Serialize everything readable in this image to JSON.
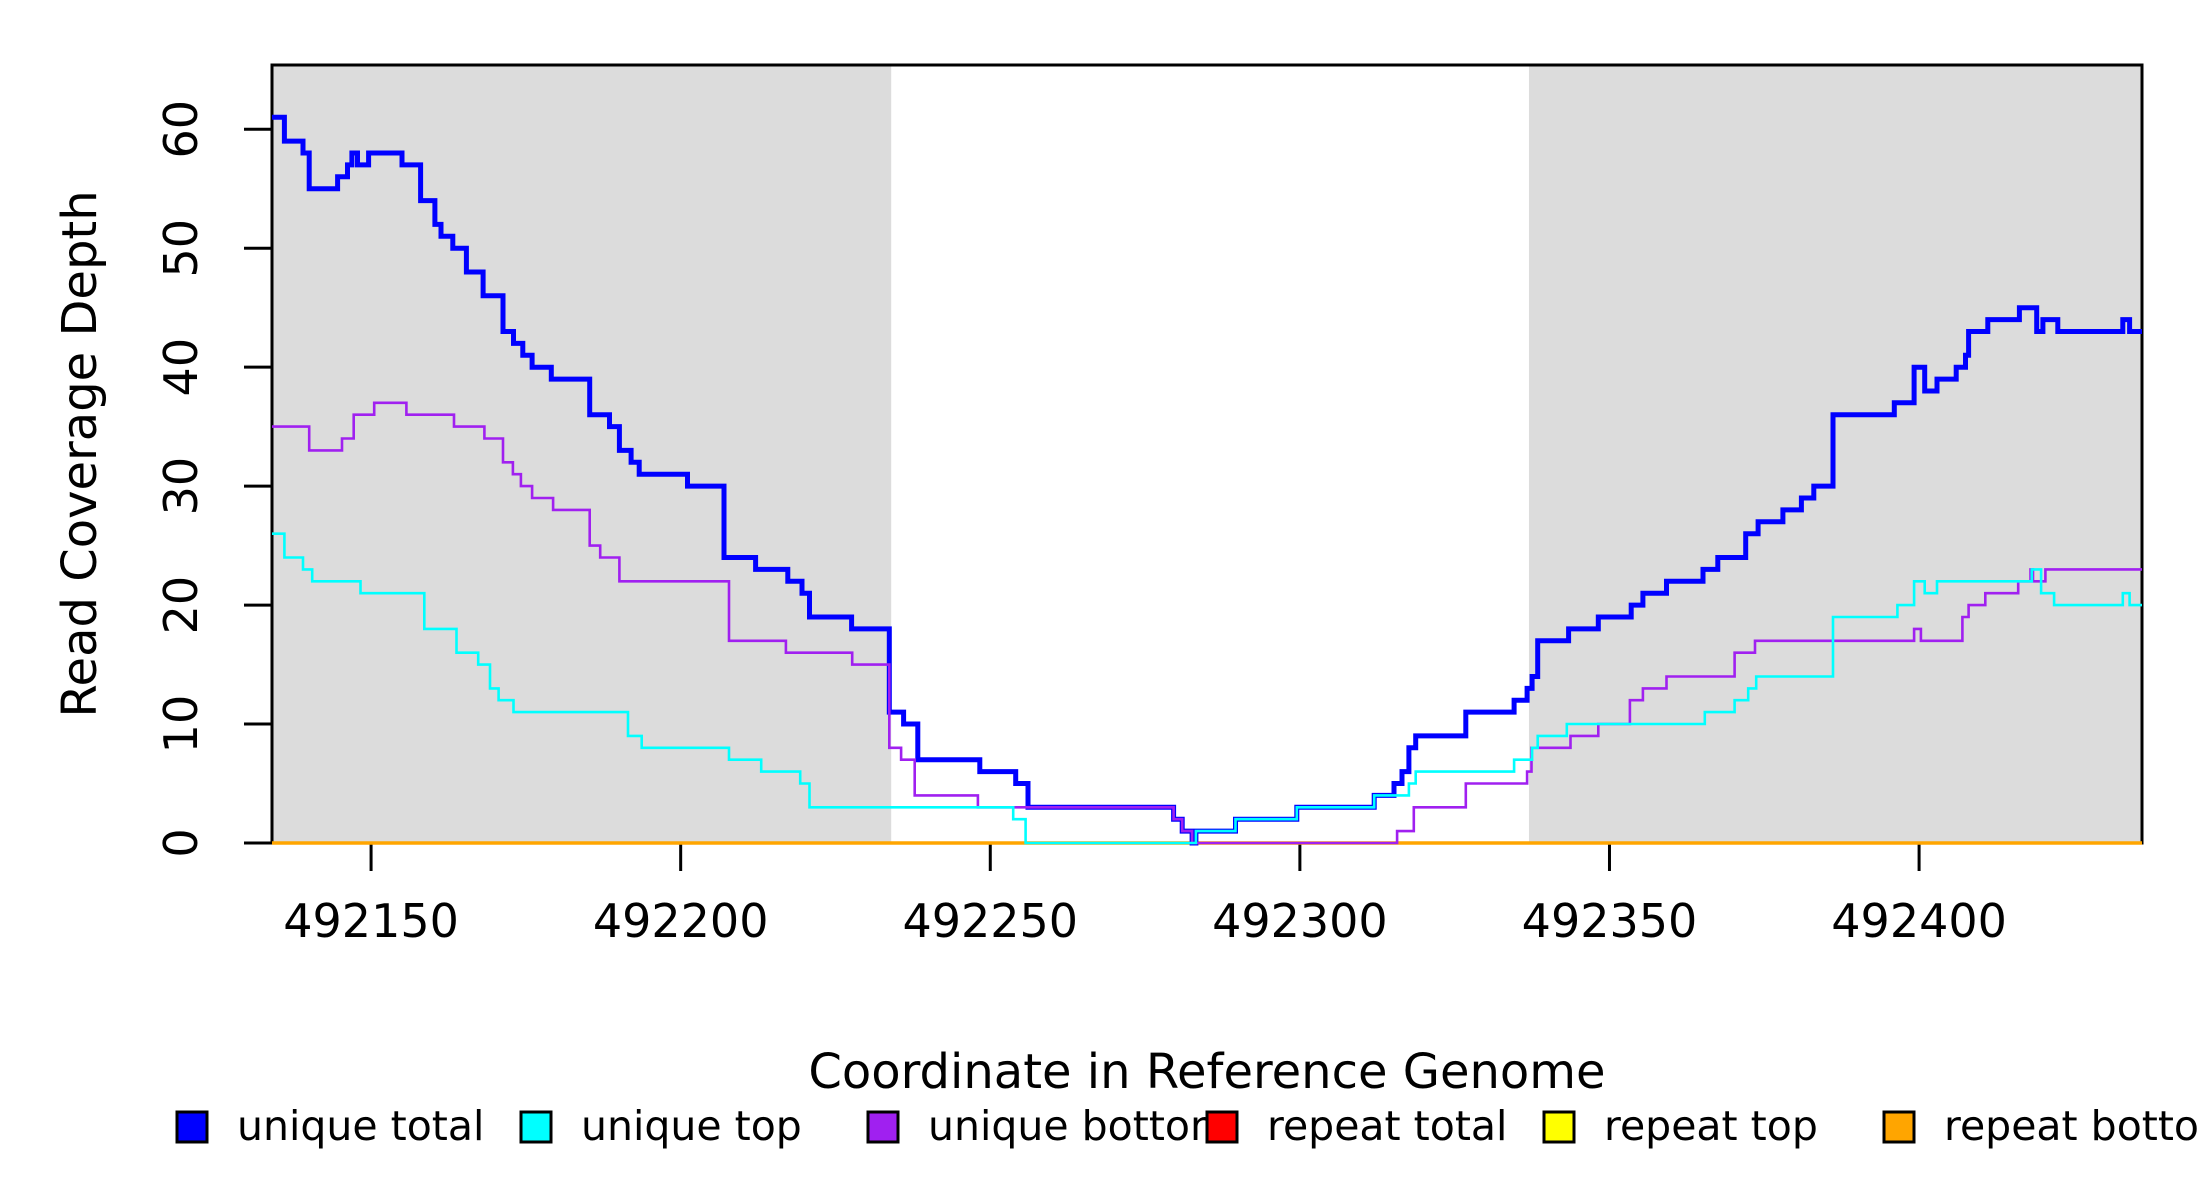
{
  "chart_data": {
    "type": "line",
    "title": "",
    "xlabel": "Coordinate in Reference Genome",
    "ylabel": "Read Coverage Depth",
    "xlim": [
      492134,
      492436
    ],
    "ylim": [
      0,
      65.4
    ],
    "x_end": 492436,
    "x_ticks": [
      "492150",
      "492200",
      "492250",
      "492300",
      "492350",
      "492400"
    ],
    "x_tick_values": [
      492150,
      492200,
      492250,
      492300,
      492350,
      492400
    ],
    "y_ticks": [
      "0",
      "10",
      "20",
      "30",
      "40",
      "50",
      "60"
    ],
    "y_tick_values": [
      0,
      10,
      20,
      30,
      40,
      50,
      60
    ],
    "grid": false,
    "shade_color": "#DCDCDC",
    "shaded_regions": [
      [
        492134,
        492234
      ],
      [
        492337,
        492436
      ]
    ],
    "legend_position": "bottom",
    "legend": [
      {
        "label": "unique total",
        "color": "#0000FF"
      },
      {
        "label": "unique top",
        "color": "#00FFFF"
      },
      {
        "label": "unique bottom",
        "color": "#A020F0"
      },
      {
        "label": "repeat total",
        "color": "#FF0000"
      },
      {
        "label": "repeat top",
        "color": "#FFFF00"
      },
      {
        "label": "repeat bottom",
        "color": "#FFA500"
      }
    ],
    "series": [
      {
        "name": "repeat total",
        "color": "#FF0000",
        "width": 2.6,
        "steps": [
          [
            492134,
            0
          ]
        ]
      },
      {
        "name": "repeat top",
        "color": "#FFFF00",
        "width": 2.6,
        "steps": [
          [
            492134,
            0
          ]
        ]
      },
      {
        "name": "repeat bottom",
        "color": "#FFA500",
        "width": 3.6,
        "steps": [
          [
            492134,
            0
          ]
        ]
      },
      {
        "name": "unique total",
        "color": "#0000FF",
        "width": 5,
        "steps": [
          [
            492134,
            61
          ],
          [
            492136,
            59
          ],
          [
            492139,
            58
          ],
          [
            492140,
            55
          ],
          [
            492144.6,
            56
          ],
          [
            492146.2,
            57
          ],
          [
            492146.9,
            58
          ],
          [
            492147.8,
            57
          ],
          [
            492149.6,
            58
          ],
          [
            492155,
            57
          ],
          [
            492158,
            54
          ],
          [
            492160.3,
            52
          ],
          [
            492161.3,
            51
          ],
          [
            492163.2,
            50
          ],
          [
            492165.4,
            48
          ],
          [
            492168.1,
            46
          ],
          [
            492171.3,
            43
          ],
          [
            492173,
            42
          ],
          [
            492174.5,
            41
          ],
          [
            492176,
            40
          ],
          [
            492179.1,
            39
          ],
          [
            492185.3,
            36
          ],
          [
            492188.5,
            35
          ],
          [
            492190.1,
            33
          ],
          [
            492192,
            32
          ],
          [
            492193.3,
            31
          ],
          [
            492201.1,
            30
          ],
          [
            492207,
            24
          ],
          [
            492212.1,
            23
          ],
          [
            492217.3,
            22
          ],
          [
            492219.6,
            21
          ],
          [
            492220.8,
            19
          ],
          [
            492227.6,
            18
          ],
          [
            492233.7,
            11
          ],
          [
            492236,
            10
          ],
          [
            492238.3,
            7
          ],
          [
            492248.3,
            6
          ],
          [
            492254.1,
            5
          ],
          [
            492256.1,
            3
          ],
          [
            492279.6,
            2
          ],
          [
            492281,
            1
          ],
          [
            492282.6,
            0
          ],
          [
            492283.2,
            1
          ],
          [
            492289.6,
            2
          ],
          [
            492299.5,
            3
          ],
          [
            492312,
            4
          ],
          [
            492315.2,
            5
          ],
          [
            492316.5,
            6
          ],
          [
            492317.6,
            8
          ],
          [
            492318.7,
            9
          ],
          [
            492326.8,
            11
          ],
          [
            492334.6,
            12
          ],
          [
            492336.7,
            13
          ],
          [
            492337.5,
            14
          ],
          [
            492338.4,
            17
          ],
          [
            492343.4,
            18
          ],
          [
            492348.2,
            19
          ],
          [
            492353.5,
            20
          ],
          [
            492355.4,
            21
          ],
          [
            492359.2,
            22
          ],
          [
            492365.1,
            23
          ],
          [
            492367.5,
            24
          ],
          [
            492372,
            26
          ],
          [
            492374,
            27
          ],
          [
            492378,
            28
          ],
          [
            492381,
            29
          ],
          [
            492383,
            30
          ],
          [
            492386.1,
            36
          ],
          [
            492396,
            37
          ],
          [
            492399.2,
            40
          ],
          [
            492400.9,
            38
          ],
          [
            492402.9,
            39
          ],
          [
            492406,
            40
          ],
          [
            492407.5,
            41
          ],
          [
            492408,
            43
          ],
          [
            492411.1,
            44
          ],
          [
            492416.2,
            45
          ],
          [
            492419,
            43
          ],
          [
            492420,
            44
          ],
          [
            492422.4,
            43
          ],
          [
            492432.9,
            44
          ],
          [
            492434,
            43
          ]
        ]
      },
      {
        "name": "unique bottom",
        "color": "#A020F0",
        "width": 2.6,
        "steps": [
          [
            492134,
            35
          ],
          [
            492140,
            33
          ],
          [
            492145.3,
            34
          ],
          [
            492147.2,
            36
          ],
          [
            492150.5,
            37
          ],
          [
            492155.7,
            36
          ],
          [
            492163.4,
            35
          ],
          [
            492168.3,
            34
          ],
          [
            492171.3,
            32
          ],
          [
            492172.9,
            31
          ],
          [
            492174.2,
            30
          ],
          [
            492176,
            29
          ],
          [
            492179.4,
            28
          ],
          [
            492185.3,
            25
          ],
          [
            492187,
            24
          ],
          [
            492190.1,
            22
          ],
          [
            492207.8,
            17
          ],
          [
            492217,
            16
          ],
          [
            492227.7,
            15
          ],
          [
            492233.7,
            8
          ],
          [
            492235.6,
            7
          ],
          [
            492237.8,
            4
          ],
          [
            492248,
            3
          ],
          [
            492279.6,
            2
          ],
          [
            492281,
            1
          ],
          [
            492282.6,
            0
          ],
          [
            492315.7,
            1
          ],
          [
            492318.4,
            3
          ],
          [
            492326.8,
            5
          ],
          [
            492336.7,
            6
          ],
          [
            492337.4,
            8
          ],
          [
            492343.7,
            9
          ],
          [
            492348.2,
            10
          ],
          [
            492353.3,
            12
          ],
          [
            492355.4,
            13
          ],
          [
            492359.2,
            14
          ],
          [
            492370.2,
            16
          ],
          [
            492373.5,
            17
          ],
          [
            492399.2,
            18
          ],
          [
            492400.3,
            17
          ],
          [
            492407,
            19
          ],
          [
            492408,
            20
          ],
          [
            492410.7,
            21
          ],
          [
            492416,
            22
          ],
          [
            492418,
            23
          ],
          [
            492418.4,
            22
          ],
          [
            492420.4,
            23
          ]
        ]
      },
      {
        "name": "unique top",
        "color": "#00FFFF",
        "width": 2.6,
        "steps": [
          [
            492134,
            26
          ],
          [
            492136,
            24
          ],
          [
            492139,
            23
          ],
          [
            492140.5,
            22
          ],
          [
            492148.3,
            21
          ],
          [
            492158.6,
            18
          ],
          [
            492163.8,
            16
          ],
          [
            492167.3,
            15
          ],
          [
            492169.2,
            13
          ],
          [
            492170.6,
            12
          ],
          [
            492173,
            11
          ],
          [
            492191.5,
            9
          ],
          [
            492193.7,
            8
          ],
          [
            492207.8,
            7
          ],
          [
            492213,
            6
          ],
          [
            492219.3,
            5
          ],
          [
            492220.8,
            3
          ],
          [
            492253.7,
            2
          ],
          [
            492255.7,
            0
          ],
          [
            492283.2,
            1
          ],
          [
            492289.6,
            2
          ],
          [
            492299.5,
            3
          ],
          [
            492312,
            4
          ],
          [
            492317.6,
            5
          ],
          [
            492318.7,
            6
          ],
          [
            492334.6,
            7
          ],
          [
            492337.5,
            8
          ],
          [
            492338.4,
            9
          ],
          [
            492343.1,
            10
          ],
          [
            492365.4,
            11
          ],
          [
            492370.2,
            12
          ],
          [
            492372.4,
            13
          ],
          [
            492373.7,
            14
          ],
          [
            492386.1,
            19
          ],
          [
            492396.5,
            20
          ],
          [
            492399.2,
            22
          ],
          [
            492400.9,
            21
          ],
          [
            492402.9,
            22
          ],
          [
            492418.2,
            23
          ],
          [
            492419.7,
            21
          ],
          [
            492421.8,
            20
          ],
          [
            492432.9,
            21
          ],
          [
            492434,
            20
          ]
        ]
      }
    ]
  }
}
